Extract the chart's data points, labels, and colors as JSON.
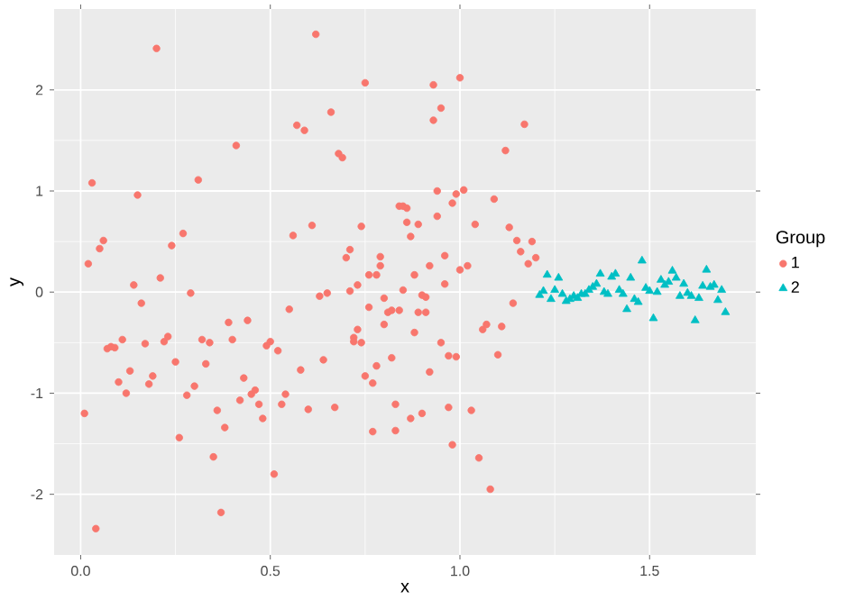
{
  "chart_data": {
    "type": "scatter",
    "xlabel": "x",
    "ylabel": "y",
    "legend_title": "Group",
    "legend": "right",
    "grid": true,
    "xlim": [
      -0.07,
      1.78
    ],
    "ylim": [
      -2.6,
      2.8
    ],
    "xticks": [
      {
        "value": 0,
        "label": "0.0"
      },
      {
        "value": 0.5,
        "label": "0.5"
      },
      {
        "value": 1,
        "label": "1.0"
      },
      {
        "value": 1.5,
        "label": "1.5"
      }
    ],
    "yticks": [
      -2,
      -1,
      0,
      1,
      2
    ],
    "series": [
      {
        "name": "1",
        "color": "#f8766d",
        "marker": "circle",
        "x": [
          0.01,
          0.02,
          0.03,
          0.04,
          0.05,
          0.06,
          0.07,
          0.08,
          0.09,
          0.1,
          0.11,
          0.12,
          0.13,
          0.14,
          0.15,
          0.16,
          0.17,
          0.18,
          0.19,
          0.2,
          0.21,
          0.22,
          0.23,
          0.24,
          0.25,
          0.26,
          0.27,
          0.28,
          0.29,
          0.3,
          0.31,
          0.32,
          0.33,
          0.34,
          0.35,
          0.36,
          0.37,
          0.38,
          0.39,
          0.4,
          0.41,
          0.42,
          0.43,
          0.44,
          0.45,
          0.46,
          0.47,
          0.48,
          0.49,
          0.5,
          0.51,
          0.52,
          0.53,
          0.54,
          0.55,
          0.56,
          0.57,
          0.58,
          0.59,
          0.6,
          0.61,
          0.62,
          0.63,
          0.64,
          0.65,
          0.66,
          0.67,
          0.68,
          0.69,
          0.7,
          0.71,
          0.71,
          0.72,
          0.72,
          0.73,
          0.73,
          0.74,
          0.74,
          0.75,
          0.75,
          0.76,
          0.76,
          0.77,
          0.77,
          0.78,
          0.78,
          0.79,
          0.79,
          0.8,
          0.8,
          0.81,
          0.82,
          0.82,
          0.83,
          0.83,
          0.84,
          0.84,
          0.85,
          0.85,
          0.86,
          0.86,
          0.87,
          0.87,
          0.88,
          0.88,
          0.89,
          0.89,
          0.9,
          0.9,
          0.91,
          0.91,
          0.92,
          0.92,
          0.93,
          0.93,
          0.94,
          0.94,
          0.95,
          0.95,
          0.96,
          0.96,
          0.97,
          0.97,
          0.98,
          0.98,
          0.99,
          0.99,
          1.0,
          1.0,
          1.01,
          1.02,
          1.03,
          1.04,
          1.05,
          1.06,
          1.07,
          1.08,
          1.09,
          1.1,
          1.11,
          1.12,
          1.13,
          1.14,
          1.15,
          1.16,
          1.17,
          1.18,
          1.19,
          1.2
        ],
        "values": [
          -1.2,
          0.28,
          1.08,
          -2.34,
          0.43,
          0.51,
          -0.56,
          -0.54,
          -0.55,
          -0.89,
          -0.47,
          -1.0,
          -0.78,
          0.07,
          0.96,
          -0.11,
          -0.51,
          -0.91,
          -0.83,
          2.41,
          0.14,
          -0.49,
          -0.44,
          0.46,
          -0.69,
          -1.44,
          0.58,
          -1.02,
          -0.01,
          -0.93,
          1.11,
          -0.47,
          -0.71,
          -0.5,
          -1.63,
          -1.17,
          -2.18,
          -1.34,
          -0.3,
          -0.47,
          1.45,
          -1.07,
          -0.85,
          -0.28,
          -1.01,
          -0.97,
          -1.11,
          -1.25,
          -0.53,
          -0.49,
          -1.8,
          -0.58,
          -1.11,
          -1.01,
          -0.17,
          0.56,
          1.65,
          -0.77,
          1.6,
          -1.16,
          0.66,
          2.55,
          -0.04,
          -0.67,
          -0.01,
          1.78,
          -1.14,
          1.37,
          1.33,
          0.34,
          0.42,
          0.01,
          -0.45,
          -0.49,
          0.07,
          -0.37,
          -0.5,
          0.65,
          2.07,
          -0.83,
          0.17,
          -0.15,
          -1.38,
          -0.9,
          0.17,
          -0.73,
          0.26,
          0.35,
          -0.06,
          -0.32,
          -0.2,
          -0.18,
          -0.65,
          -1.11,
          -1.37,
          0.85,
          -0.18,
          0.85,
          0.02,
          0.83,
          0.69,
          -1.25,
          0.55,
          -0.4,
          0.17,
          0.67,
          -0.2,
          -1.2,
          -0.03,
          -0.05,
          -0.2,
          0.26,
          -0.79,
          2.05,
          1.7,
          1.0,
          0.75,
          1.82,
          -0.5,
          0.36,
          0.08,
          -0.63,
          -1.14,
          -1.51,
          0.88,
          0.97,
          -0.64,
          2.12,
          0.22,
          1.01,
          0.26,
          -1.17,
          0.67,
          -1.64,
          -0.37,
          -0.32,
          -1.95,
          0.92,
          -0.62,
          -0.34,
          1.4,
          0.64,
          -0.11,
          0.51,
          0.4,
          1.66,
          0.28,
          0.5,
          0.34
        ]
      },
      {
        "name": "2",
        "color": "#00bfc4",
        "marker": "triangle",
        "x": [
          1.21,
          1.22,
          1.23,
          1.24,
          1.25,
          1.26,
          1.27,
          1.28,
          1.29,
          1.3,
          1.31,
          1.32,
          1.33,
          1.34,
          1.35,
          1.36,
          1.37,
          1.38,
          1.39,
          1.4,
          1.41,
          1.42,
          1.43,
          1.44,
          1.45,
          1.46,
          1.47,
          1.48,
          1.49,
          1.5,
          1.51,
          1.52,
          1.53,
          1.54,
          1.55,
          1.56,
          1.57,
          1.58,
          1.59,
          1.6,
          1.61,
          1.62,
          1.63,
          1.64,
          1.65,
          1.66,
          1.67,
          1.68,
          1.69,
          1.7
        ],
        "values": [
          -0.03,
          0.01,
          0.17,
          -0.07,
          0.02,
          0.14,
          -0.02,
          -0.09,
          -0.07,
          -0.04,
          -0.06,
          -0.02,
          -0.02,
          0.02,
          0.05,
          0.08,
          0.18,
          0.0,
          -0.02,
          0.15,
          0.18,
          0.02,
          -0.02,
          -0.17,
          0.14,
          -0.07,
          -0.1,
          0.31,
          0.04,
          0.01,
          -0.26,
          0.0,
          0.12,
          0.07,
          0.1,
          0.21,
          0.14,
          -0.04,
          0.08,
          -0.01,
          -0.04,
          -0.28,
          -0.06,
          0.06,
          0.22,
          0.05,
          0.07,
          -0.08,
          0.02,
          -0.2
        ]
      }
    ]
  }
}
